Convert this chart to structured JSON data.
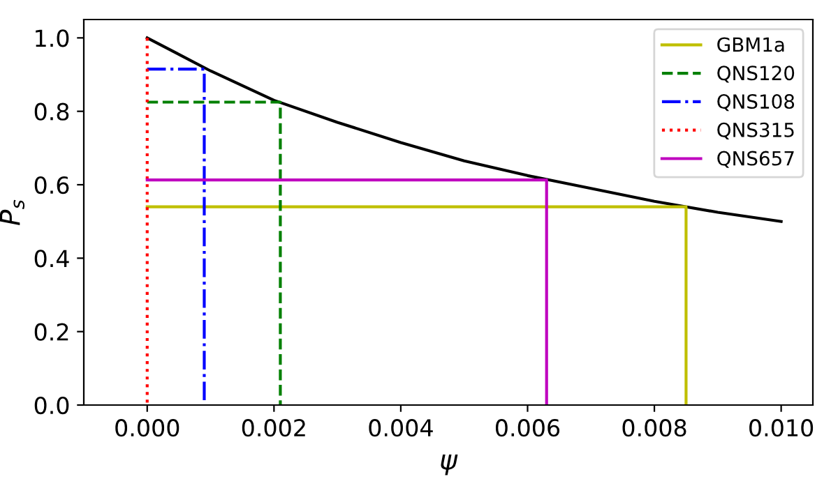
{
  "chart_data": {
    "type": "line",
    "xlabel": "ψ",
    "ylabel": "P$_{s}$",
    "xlim": [
      -0.001,
      0.0105
    ],
    "ylim": [
      0,
      1.05
    ],
    "xticks": [
      {
        "value": 0,
        "label": "0.000"
      },
      {
        "value": 0.002,
        "label": "0.002"
      },
      {
        "value": 0.004,
        "label": "0.004"
      },
      {
        "value": 0.006,
        "label": "0.006"
      },
      {
        "value": 0.008,
        "label": "0.008"
      },
      {
        "value": 0.01,
        "label": "0.010"
      }
    ],
    "yticks": [
      {
        "value": 0,
        "label": "0.0"
      },
      {
        "value": 0.2,
        "label": "0.2"
      },
      {
        "value": 0.4,
        "label": "0.4"
      },
      {
        "value": 0.6,
        "label": "0.6"
      },
      {
        "value": 0.8,
        "label": "0.8"
      },
      {
        "value": 1.0,
        "label": "1.0"
      }
    ],
    "grid": false,
    "legend": "top right",
    "marker": "none",
    "series": [
      {
        "color": "#000000",
        "line_style": "solid",
        "x": [
          0,
          0.001,
          0.002,
          0.003,
          0.004,
          0.005,
          0.006,
          0.007,
          0.008,
          0.009,
          0.01
        ],
        "values": [
          1.0,
          0.91,
          0.83,
          0.77,
          0.715,
          0.665,
          0.625,
          0.59,
          0.555,
          0.525,
          0.5
        ]
      },
      {
        "name": "GBM1a",
        "color": "#bfbf00",
        "line_style": "solid",
        "x": [
          0,
          0.0085,
          0.0085
        ],
        "values": [
          0.54,
          0.54,
          0
        ]
      },
      {
        "name": "QNS120",
        "color": "#008000",
        "line_style": "dashed",
        "x": [
          0,
          0.0021,
          0.0021
        ],
        "values": [
          0.825,
          0.825,
          0
        ]
      },
      {
        "name": "QNS108",
        "color": "#0000ff",
        "line_style": "dashdot",
        "x": [
          0,
          0.0009,
          0.0009
        ],
        "values": [
          0.915,
          0.915,
          0
        ]
      },
      {
        "name": "QNS315",
        "color": "#ff0000",
        "line_style": "dotted",
        "x": [
          0,
          0,
          0
        ],
        "values": [
          1.0,
          1.0,
          0
        ]
      },
      {
        "name": "QNS657",
        "color": "#bf00bf",
        "line_style": "solid",
        "x": [
          0,
          0.0063,
          0.0063
        ],
        "values": [
          0.613,
          0.613,
          0
        ]
      }
    ]
  }
}
